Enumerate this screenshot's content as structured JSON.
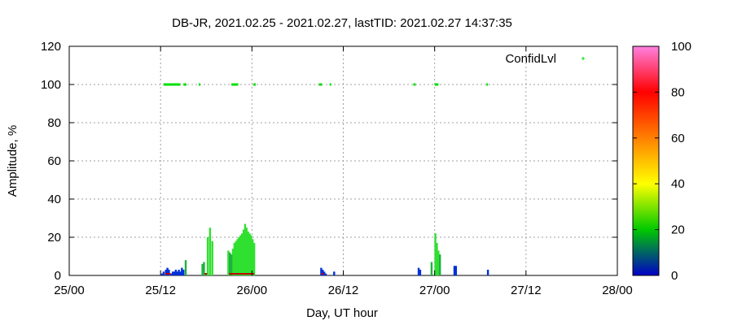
{
  "chart_data": {
    "type": "bar",
    "title": "DB-JR, 2021.02.25 - 2021.02.27, lastTID: 2021.02.27 14:37:35",
    "xlabel": "Day, UT hour",
    "ylabel": "Amplitude, %",
    "xlim": [
      0,
      72
    ],
    "ylim": [
      0,
      120
    ],
    "x_ticks": [
      {
        "value": 0,
        "label": "25/00"
      },
      {
        "value": 12,
        "label": "25/12"
      },
      {
        "value": 24,
        "label": "26/00"
      },
      {
        "value": 36,
        "label": "26/12"
      },
      {
        "value": 48,
        "label": "27/00"
      },
      {
        "value": 60,
        "label": "27/12"
      },
      {
        "value": 72,
        "label": "28/00"
      }
    ],
    "y_ticks": [
      0,
      20,
      40,
      60,
      80,
      100,
      120
    ],
    "grid": true,
    "legend": {
      "label": "ConfidLvl",
      "position": "top-right",
      "color": "#00e000"
    },
    "colorbar": {
      "range": [
        0,
        100
      ],
      "ticks": [
        0,
        20,
        40,
        60,
        80,
        100
      ],
      "colors": [
        "#0000c8",
        "#00c800",
        "#ffff00",
        "#ff8000",
        "#ff0000",
        "#ff80e0"
      ]
    },
    "series": [
      {
        "name": "ConfidLvl",
        "type": "scatter",
        "color": "#00e000",
        "y": 100,
        "ranges": [
          [
            12.4,
            14.6
          ],
          [
            15.0,
            15.4
          ],
          [
            17.0,
            17.2
          ],
          [
            21.3,
            22.2
          ],
          [
            24.2,
            24.5
          ],
          [
            32.8,
            33.2
          ],
          [
            34.2,
            34.4
          ],
          [
            45.2,
            45.5
          ],
          [
            48.0,
            48.5
          ],
          [
            54.8,
            55.0
          ]
        ]
      },
      {
        "name": "Amplitude",
        "type": "bar",
        "bars": [
          [
            12.2,
            1
          ],
          [
            12.4,
            2
          ],
          [
            12.7,
            3
          ],
          [
            12.9,
            4
          ],
          [
            13.1,
            3
          ],
          [
            13.4,
            1
          ],
          [
            13.6,
            2
          ],
          [
            13.8,
            2
          ],
          [
            14.0,
            3
          ],
          [
            14.2,
            2
          ],
          [
            14.4,
            3
          ],
          [
            14.6,
            2
          ],
          [
            14.8,
            4
          ],
          [
            15.0,
            3
          ],
          [
            15.3,
            8
          ],
          [
            17.5,
            6
          ],
          [
            17.7,
            7
          ],
          [
            18.2,
            20
          ],
          [
            18.5,
            25
          ],
          [
            18.8,
            18
          ],
          [
            21.5,
            14
          ],
          [
            21.7,
            17
          ],
          [
            21.9,
            18
          ],
          [
            22.1,
            19
          ],
          [
            22.3,
            20
          ],
          [
            22.5,
            21
          ],
          [
            22.7,
            22
          ],
          [
            22.9,
            24
          ],
          [
            23.1,
            27
          ],
          [
            23.3,
            25
          ],
          [
            23.5,
            23
          ],
          [
            23.7,
            22
          ],
          [
            23.9,
            21
          ],
          [
            24.1,
            19
          ],
          [
            24.3,
            17
          ],
          [
            20.9,
            13
          ],
          [
            21.1,
            12
          ],
          [
            21.3,
            11
          ],
          [
            33.1,
            4
          ],
          [
            33.3,
            3
          ],
          [
            33.5,
            2
          ],
          [
            33.7,
            1
          ],
          [
            34.8,
            2
          ],
          [
            45.9,
            4
          ],
          [
            46.1,
            3
          ],
          [
            47.6,
            7
          ],
          [
            48.1,
            22
          ],
          [
            48.3,
            17
          ],
          [
            48.5,
            13
          ],
          [
            48.7,
            11
          ],
          [
            50.6,
            5
          ],
          [
            50.8,
            5
          ],
          [
            55.0,
            3
          ]
        ]
      }
    ]
  }
}
